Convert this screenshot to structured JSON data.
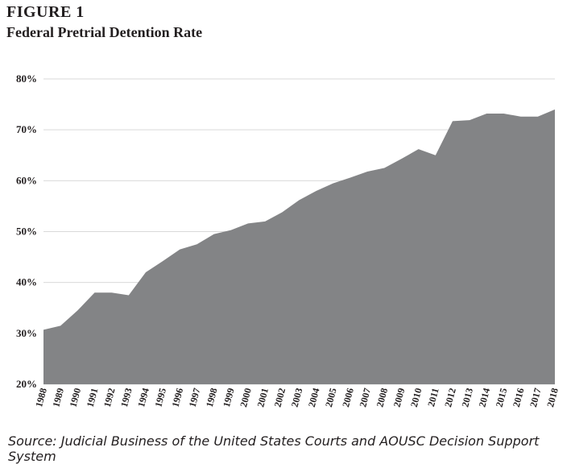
{
  "figure_label": "FIGURE 1",
  "source": "Source: Judicial Business of the United States Courts and AOUSC Decision Support System",
  "chart_data": {
    "type": "area",
    "title": "Federal Pretrial Detention Rate",
    "xlabel": "",
    "ylabel": "",
    "x": [
      "1988",
      "1989",
      "1990",
      "1991",
      "1992",
      "1993",
      "1994",
      "1995",
      "1996",
      "1997",
      "1998",
      "1999",
      "2000",
      "2001",
      "2002",
      "2003",
      "2004",
      "2005",
      "2006",
      "2007",
      "2008",
      "2009",
      "2010",
      "2011",
      "2012",
      "2013",
      "2014",
      "2015",
      "2016",
      "2017",
      "2018"
    ],
    "values": [
      30.7,
      31.5,
      34.5,
      38.0,
      38.0,
      37.5,
      42.0,
      44.2,
      46.5,
      47.5,
      49.5,
      50.3,
      51.6,
      52.0,
      53.8,
      56.2,
      58.0,
      59.5,
      60.6,
      61.8,
      62.5,
      64.3,
      66.2,
      65.0,
      71.7,
      71.9,
      73.2,
      73.2,
      72.6,
      72.6,
      74.0
    ],
    "ylim": [
      20,
      80
    ],
    "yticks": [
      80,
      70,
      60,
      50,
      40,
      30,
      20
    ],
    "ytick_labels": [
      "80%",
      "70%",
      "60%",
      "50%",
      "40%",
      "30%",
      "20%"
    ],
    "grid": true,
    "fill_color": "#838486",
    "grid_color": "#d9d9d9"
  }
}
